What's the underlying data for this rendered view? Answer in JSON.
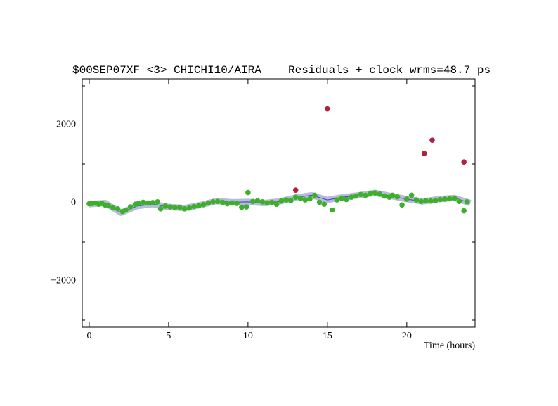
{
  "chart_data": {
    "type": "scatter",
    "title": "$00SEP07XF <3> CHICHI10/AIRA",
    "subtitle": "Residuals + clock wrms=48.7  ps",
    "x_label": "Time (hours)",
    "xlim": [
      -0.44,
      24.3
    ],
    "ylim": [
      -3180,
      3180
    ],
    "xticks": [
      0,
      5,
      10,
      15,
      20
    ],
    "yticks": [
      {
        "value": -2000,
        "label": "−2000"
      },
      0,
      2000
    ],
    "yminorticks": [
      -3000,
      -1000,
      1000,
      3000
    ],
    "series": [
      {
        "kind": "line",
        "color": "#3a3acc",
        "band_color": "#b8bcd8",
        "x": [
          0,
          1,
          2,
          3,
          4,
          5,
          6,
          7,
          8,
          9,
          10,
          11,
          12,
          13,
          14,
          15,
          16,
          17,
          18,
          19,
          20,
          21,
          22,
          23,
          24
        ],
        "values": [
          -30,
          0,
          -250,
          -80,
          -30,
          -100,
          -130,
          -50,
          50,
          20,
          30,
          0,
          40,
          140,
          200,
          80,
          150,
          200,
          260,
          180,
          100,
          40,
          100,
          130,
          0
        ]
      },
      {
        "kind": "points",
        "color": "#3cb02a",
        "x": [
          0.0,
          0.2,
          0.4,
          0.6,
          0.8,
          1.0,
          1.2,
          1.5,
          1.8,
          2.1,
          2.3,
          2.6,
          2.9,
          3.1,
          3.4,
          3.7,
          4.0,
          4.3,
          4.5,
          4.8,
          5.1,
          5.4,
          5.7,
          6.0,
          6.3,
          6.6,
          6.9,
          7.2,
          7.5,
          7.8,
          8.1,
          8.4,
          8.7,
          9.0,
          9.3,
          9.6,
          9.9,
          10.0,
          10.3,
          10.6,
          10.9,
          11.2,
          11.5,
          11.8,
          12.1,
          12.4,
          12.7,
          13.0,
          13.3,
          13.6,
          13.9,
          14.2,
          14.5,
          14.8,
          15.3,
          15.6,
          15.9,
          16.2,
          16.5,
          16.8,
          17.1,
          17.4,
          17.7,
          18.0,
          18.3,
          18.6,
          18.9,
          19.1,
          19.4,
          19.7,
          20.0,
          20.3,
          20.6,
          20.9,
          21.2,
          21.5,
          21.8,
          22.1,
          22.4,
          22.7,
          23.0,
          23.3,
          23.6,
          23.8
        ],
        "values": [
          -20,
          -10,
          0,
          -30,
          -10,
          -50,
          -60,
          -120,
          -150,
          -220,
          -180,
          -100,
          -30,
          -10,
          20,
          0,
          10,
          30,
          -150,
          -80,
          -100,
          -120,
          -110,
          -150,
          -130,
          -90,
          -70,
          -40,
          0,
          30,
          40,
          20,
          -20,
          0,
          -10,
          -110,
          -100,
          270,
          40,
          60,
          30,
          0,
          20,
          -30,
          50,
          80,
          60,
          150,
          120,
          80,
          110,
          200,
          20,
          -30,
          -180,
          80,
          120,
          90,
          150,
          180,
          220,
          200,
          240,
          260,
          230,
          180,
          150,
          200,
          160,
          -50,
          100,
          200,
          80,
          40,
          60,
          50,
          60,
          90,
          100,
          110,
          120,
          40,
          -200,
          30
        ]
      },
      {
        "kind": "points",
        "color": "#b02040",
        "x": [
          13.0,
          15.0,
          21.1,
          21.6,
          23.6
        ],
        "values": [
          330,
          2410,
          1270,
          1610,
          1050
        ]
      }
    ]
  }
}
